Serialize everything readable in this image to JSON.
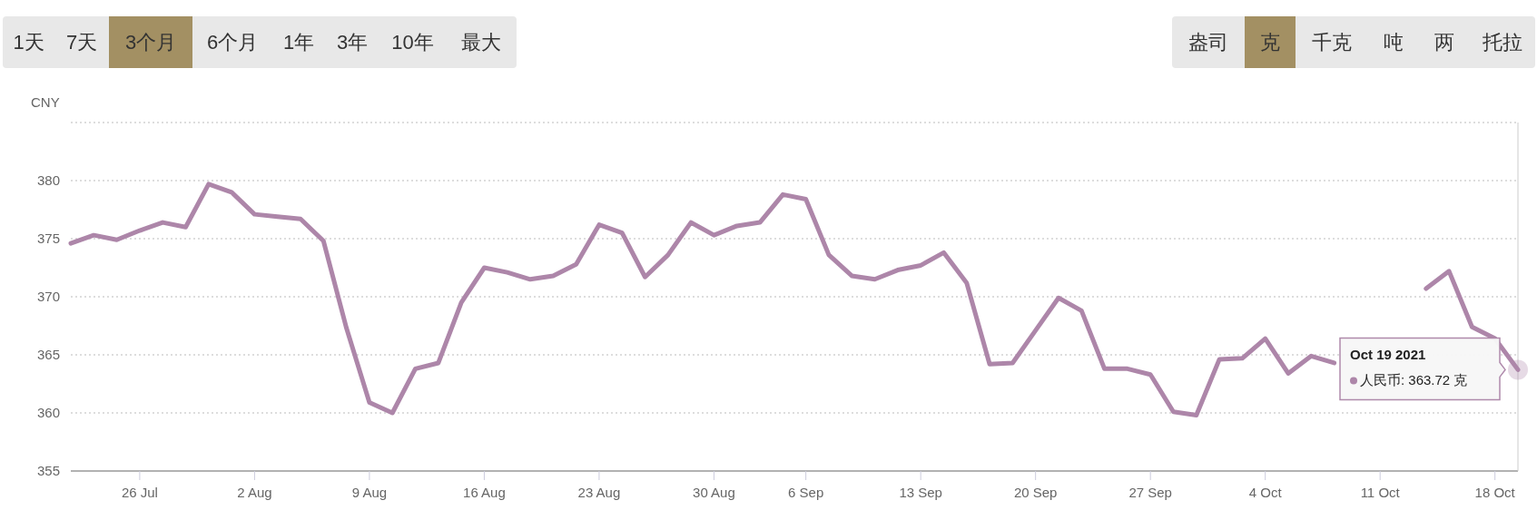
{
  "chart_data": {
    "type": "line",
    "ylabel": "CNY",
    "categories": [
      null,
      null,
      null,
      "26 Jul",
      null,
      null,
      null,
      null,
      "2 Aug",
      null,
      null,
      null,
      null,
      "9 Aug",
      null,
      null,
      null,
      null,
      "16 Aug",
      null,
      null,
      null,
      null,
      "23 Aug",
      null,
      null,
      null,
      null,
      "30 Aug",
      null,
      null,
      null,
      "6 Sep",
      null,
      null,
      null,
      null,
      "13 Sep",
      null,
      null,
      null,
      null,
      "20 Sep",
      null,
      null,
      null,
      null,
      "27 Sep",
      null,
      null,
      null,
      null,
      "4 Oct",
      null,
      null,
      null,
      null,
      "11 Oct",
      null,
      null,
      null,
      null,
      "18 Oct",
      null
    ],
    "series": [
      {
        "color": "#ad86a9",
        "values": [
          374.6,
          375.3,
          374.9,
          375.7,
          376.4,
          376.0,
          379.7,
          379.0,
          377.1,
          376.9,
          376.7,
          374.8,
          367.3,
          360.9,
          360.0,
          363.8,
          364.3,
          369.5,
          372.5,
          372.1,
          371.5,
          371.8,
          372.8,
          376.2,
          375.5,
          371.7,
          373.6,
          376.4,
          375.3,
          376.1,
          376.4,
          378.8,
          378.4,
          373.6,
          371.8,
          371.5,
          372.3,
          372.7,
          373.8,
          371.2,
          364.2,
          364.3,
          367.1,
          369.9,
          368.8,
          363.8,
          363.8,
          363.3,
          360.1,
          359.8,
          364.6,
          364.7,
          366.4,
          363.4,
          364.9,
          364.3,
          null,
          null,
          null,
          370.7,
          372.2,
          367.4,
          366.4,
          363.72
        ]
      }
    ],
    "ylim": [
      355,
      385
    ],
    "yticks": [
      355,
      360,
      365,
      370,
      375,
      380,
      {
        "value": 385,
        "label": null
      }
    ],
    "grid": "y",
    "marker": "none",
    "line_style": "solid",
    "annotations": [
      "1天",
      "7天",
      "3个月",
      "6个月",
      "1年",
      "3年",
      "10年",
      "最大",
      "盎司",
      "克",
      "千克",
      "吨",
      "两",
      "托拉",
      "Oct 19 2021\n人民币: 363.72 克"
    ]
  }
}
